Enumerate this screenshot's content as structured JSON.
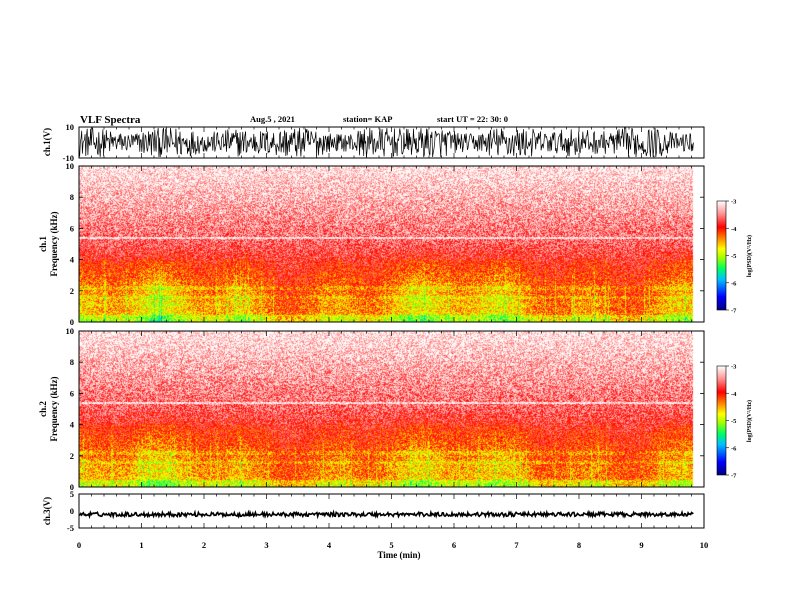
{
  "header": {
    "title": "VLF Spectra",
    "date": "Aug.5  , 2021",
    "station": "station= KAP",
    "start": "start  UT  =   22: 30: 0"
  },
  "chart_data": [
    {
      "name": "ch1-waveform",
      "type": "line",
      "ylabel": "ch.1(V)",
      "ylim": [
        -10,
        10
      ],
      "y_ticks": [
        "10",
        "-10"
      ],
      "xlim": [
        0,
        10
      ],
      "data_xmax": 9.83
    },
    {
      "name": "ch1-spectrogram",
      "type": "heatmap",
      "ylabel": "ch.1\nFrequency  (kHz)",
      "ylim": [
        0,
        10
      ],
      "y_ticks": [
        "0",
        "2",
        "4",
        "6",
        "8",
        "10"
      ],
      "xlim": [
        0,
        10
      ],
      "data_xmax": 9.83,
      "colorbar": {
        "label": "log(PSD)(V²/Hz)",
        "range": [
          -7,
          -3
        ],
        "ticks": [
          "-3",
          "-4",
          "-5",
          "-6",
          "-7"
        ]
      }
    },
    {
      "name": "ch2-spectrogram",
      "type": "heatmap",
      "ylabel": "ch.2\nFrequency  (kHz)",
      "ylim": [
        0,
        10
      ],
      "y_ticks": [
        "0",
        "2",
        "4",
        "6",
        "8",
        "10"
      ],
      "xlim": [
        0,
        10
      ],
      "data_xmax": 9.83,
      "colorbar": {
        "label": "log(PSD)(V²/Hz)",
        "range": [
          -7,
          -3
        ],
        "ticks": [
          "-3",
          "-4",
          "-5",
          "-6",
          "-7"
        ]
      }
    },
    {
      "name": "ch3-waveform",
      "type": "line",
      "ylabel": "ch.3(V)",
      "ylim": [
        -5,
        5
      ],
      "y_ticks": [
        "5",
        "0",
        "-5"
      ],
      "xlim": [
        0,
        10
      ],
      "data_xmax": 9.83,
      "xlabel": "Time  (min)",
      "x_ticks": [
        "0",
        "1",
        "2",
        "3",
        "4",
        "5",
        "6",
        "7",
        "8",
        "9",
        "10"
      ]
    }
  ],
  "colors": {
    "scale": [
      "#000080",
      "#0000ff",
      "#00c0ff",
      "#00ff80",
      "#80ff00",
      "#ffff00",
      "#ff8000",
      "#ff0000",
      "#ffd0d0",
      "#ffffff"
    ],
    "line": "#000000"
  }
}
